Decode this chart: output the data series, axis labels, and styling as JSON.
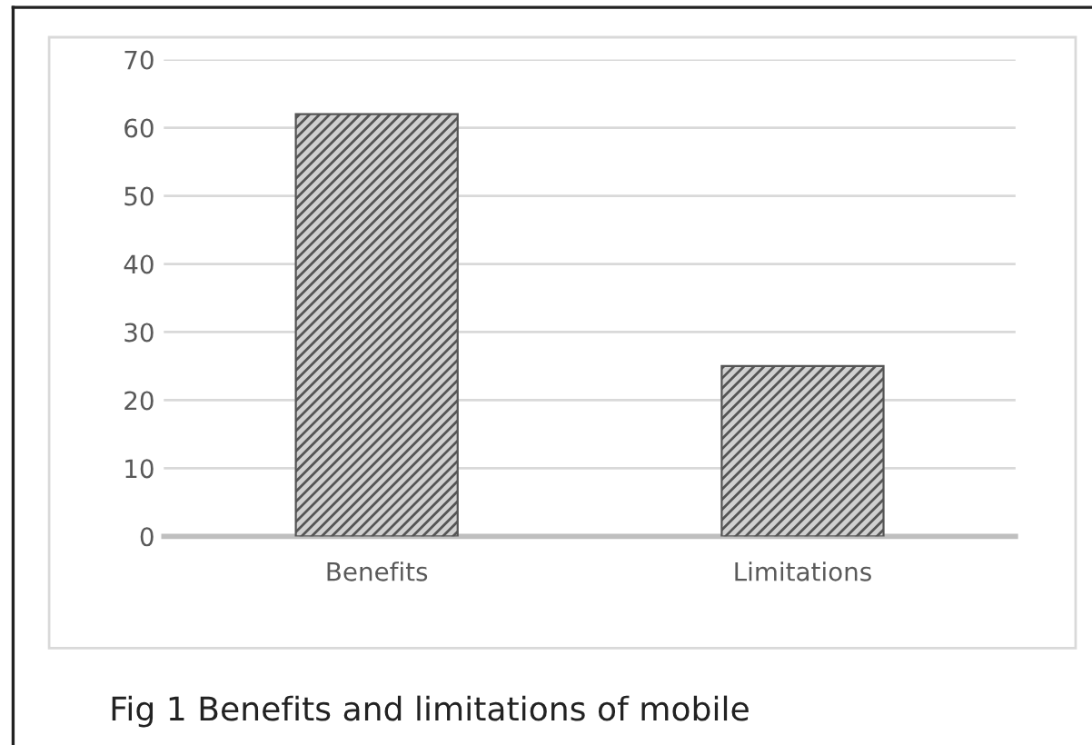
{
  "chart_data": {
    "type": "bar",
    "categories": [
      "Benefits",
      "Limitations"
    ],
    "values": [
      62,
      25
    ],
    "color": "#555555",
    "ylim": [
      0,
      70
    ],
    "yticks": [
      0,
      10,
      20,
      30,
      40,
      50,
      60,
      70
    ],
    "grid": "y",
    "legend": false,
    "annotations": [
      "Fig 1 Benefits and limitations of mobile"
    ]
  }
}
